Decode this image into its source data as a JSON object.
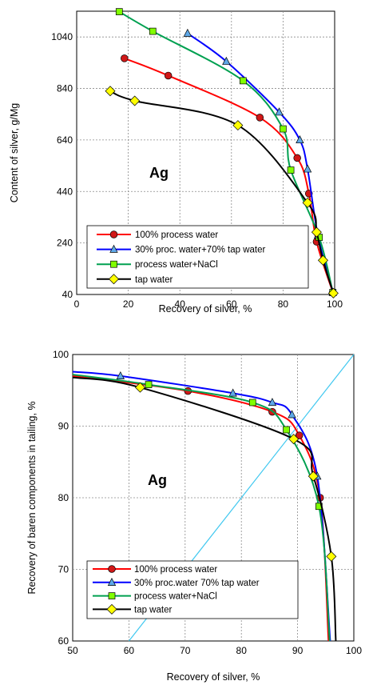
{
  "chart_data": [
    {
      "type": "line",
      "xlabel": "Recovery of silver, %",
      "ylabel": "Content of silver, g/Mg",
      "xlim": [
        0,
        100
      ],
      "ylim": [
        40,
        1140
      ],
      "xticks": [
        0,
        20,
        40,
        60,
        80,
        100
      ],
      "yticks": [
        40,
        240,
        440,
        640,
        840,
        1040
      ],
      "grid": true,
      "legend_position": "bottom-left",
      "annotation": "Ag",
      "series": [
        {
          "name": "100% process water",
          "color": "#ff0000",
          "marker": "circle",
          "marker_color": "#d01818",
          "points": [
            [
              18.5,
              957
            ],
            [
              35.5,
              890
            ],
            [
              71,
              727
            ],
            [
              85.5,
              570
            ],
            [
              90,
              432
            ],
            [
              93,
              245
            ],
            [
              99.3,
              48
            ]
          ]
        },
        {
          "name": "30% proc. water+70% tap water",
          "color": "#0000ff",
          "marker": "triangle",
          "marker_color": "#5ea8e8",
          "points": [
            [
              43,
              1054
            ],
            [
              58,
              945
            ],
            [
              78.5,
              748
            ],
            [
              86.5,
              640
            ],
            [
              89.5,
              527
            ],
            [
              93.5,
              270
            ],
            [
              99.3,
              48
            ]
          ]
        },
        {
          "name": "process water+NaCl",
          "color": "#00a050",
          "marker": "square",
          "marker_color": "#80ff00",
          "points": [
            [
              16.5,
              1138
            ],
            [
              29.5,
              1062
            ],
            [
              64.5,
              870
            ],
            [
              80,
              683
            ],
            [
              83,
              523
            ],
            [
              94,
              262
            ],
            [
              99.3,
              48
            ]
          ]
        },
        {
          "name": "tap water",
          "color": "#000000",
          "marker": "diamond",
          "marker_color": "#ffff00",
          "points": [
            [
              13,
              830
            ],
            [
              22.5,
              792
            ],
            [
              62.5,
              697
            ],
            [
              89.5,
              396
            ],
            [
              93,
              282
            ],
            [
              95.5,
              173
            ],
            [
              99.5,
              45
            ]
          ]
        }
      ]
    },
    {
      "type": "line",
      "xlabel": "Recovery of silver, %",
      "ylabel": "Recovery of  baren components in tailing, %",
      "xlim": [
        50,
        100
      ],
      "ylim": [
        60,
        100
      ],
      "xticks": [
        50,
        60,
        70,
        80,
        90,
        100
      ],
      "yticks": [
        60,
        70,
        80,
        90,
        100
      ],
      "grid": true,
      "legend_position": "bottom-left",
      "annotation": "Ag",
      "diagonal": {
        "color": "#40c8f0",
        "points": [
          [
            60,
            60
          ],
          [
            100,
            100
          ]
        ]
      },
      "series": [
        {
          "name": "100% process water",
          "color": "#ff0000",
          "marker": "circle",
          "marker_color": "#d01818",
          "points": [
            [
              50,
              97
            ],
            [
              70.5,
              94.9
            ],
            [
              85.5,
              92
            ],
            [
              90.3,
              88.7
            ],
            [
              94,
              80
            ],
            [
              95.5,
              60
            ]
          ]
        },
        {
          "name": "30% proc.water 70% tap water",
          "color": "#0000ff",
          "marker": "triangle",
          "marker_color": "#5ea8e8",
          "points": [
            [
              50,
              97.6
            ],
            [
              58.5,
              97
            ],
            [
              78.5,
              94.6
            ],
            [
              85.5,
              93.3
            ],
            [
              89,
              91.6
            ],
            [
              93.5,
              83
            ],
            [
              95.8,
              60
            ]
          ]
        },
        {
          "name": "process water+NaCl",
          "color": "#00a050",
          "marker": "square",
          "marker_color": "#80ff00",
          "points": [
            [
              50,
              97.2
            ],
            [
              63.5,
              95.8
            ],
            [
              82,
              93.3
            ],
            [
              88,
              89.5
            ],
            [
              93.8,
              78.8
            ],
            [
              95.7,
              60
            ]
          ]
        },
        {
          "name": "tap water",
          "color": "#000000",
          "marker": "diamond",
          "marker_color": "#ffff00",
          "points": [
            [
              50,
              96.8
            ],
            [
              62,
              95.4
            ],
            [
              89.3,
              88.2
            ],
            [
              92.8,
              83
            ],
            [
              96,
              71.8
            ],
            [
              96.8,
              60
            ]
          ]
        }
      ]
    }
  ]
}
